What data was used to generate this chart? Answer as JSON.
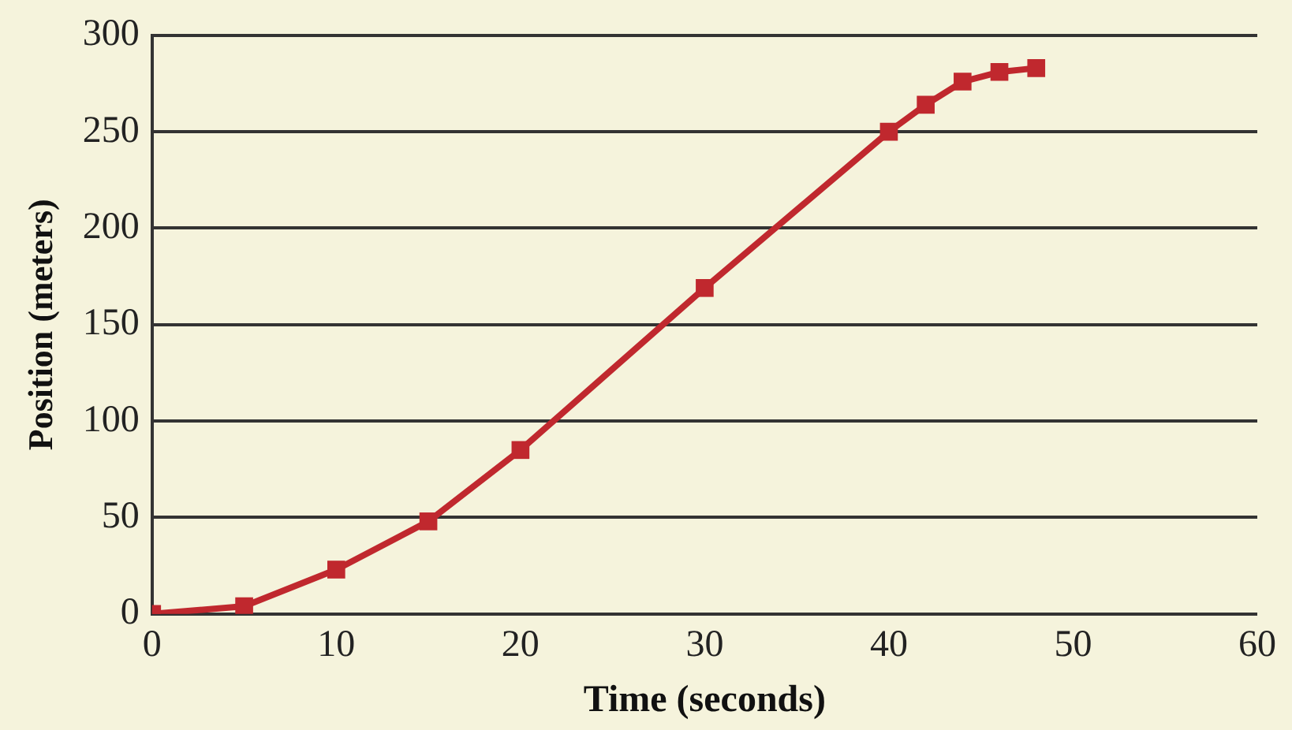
{
  "chart_data": {
    "type": "line",
    "xlabel": "Time (seconds)",
    "ylabel": "Position (meters)",
    "x": [
      0,
      5,
      10,
      15,
      20,
      30,
      40,
      42,
      44,
      46,
      48
    ],
    "series": [
      {
        "color": "#c0282e",
        "values": [
          0,
          4,
          23,
          48,
          85,
          169,
          250,
          264,
          276,
          281,
          283
        ]
      }
    ],
    "xlim": [
      0,
      60
    ],
    "xticks": [
      0,
      10,
      20,
      30,
      40,
      50,
      60
    ],
    "ylim": [
      0,
      300
    ],
    "yticks": [
      0,
      50,
      100,
      150,
      200,
      250,
      300
    ],
    "grid": "y",
    "legend": false,
    "marker": "square",
    "line_style": "solid"
  }
}
